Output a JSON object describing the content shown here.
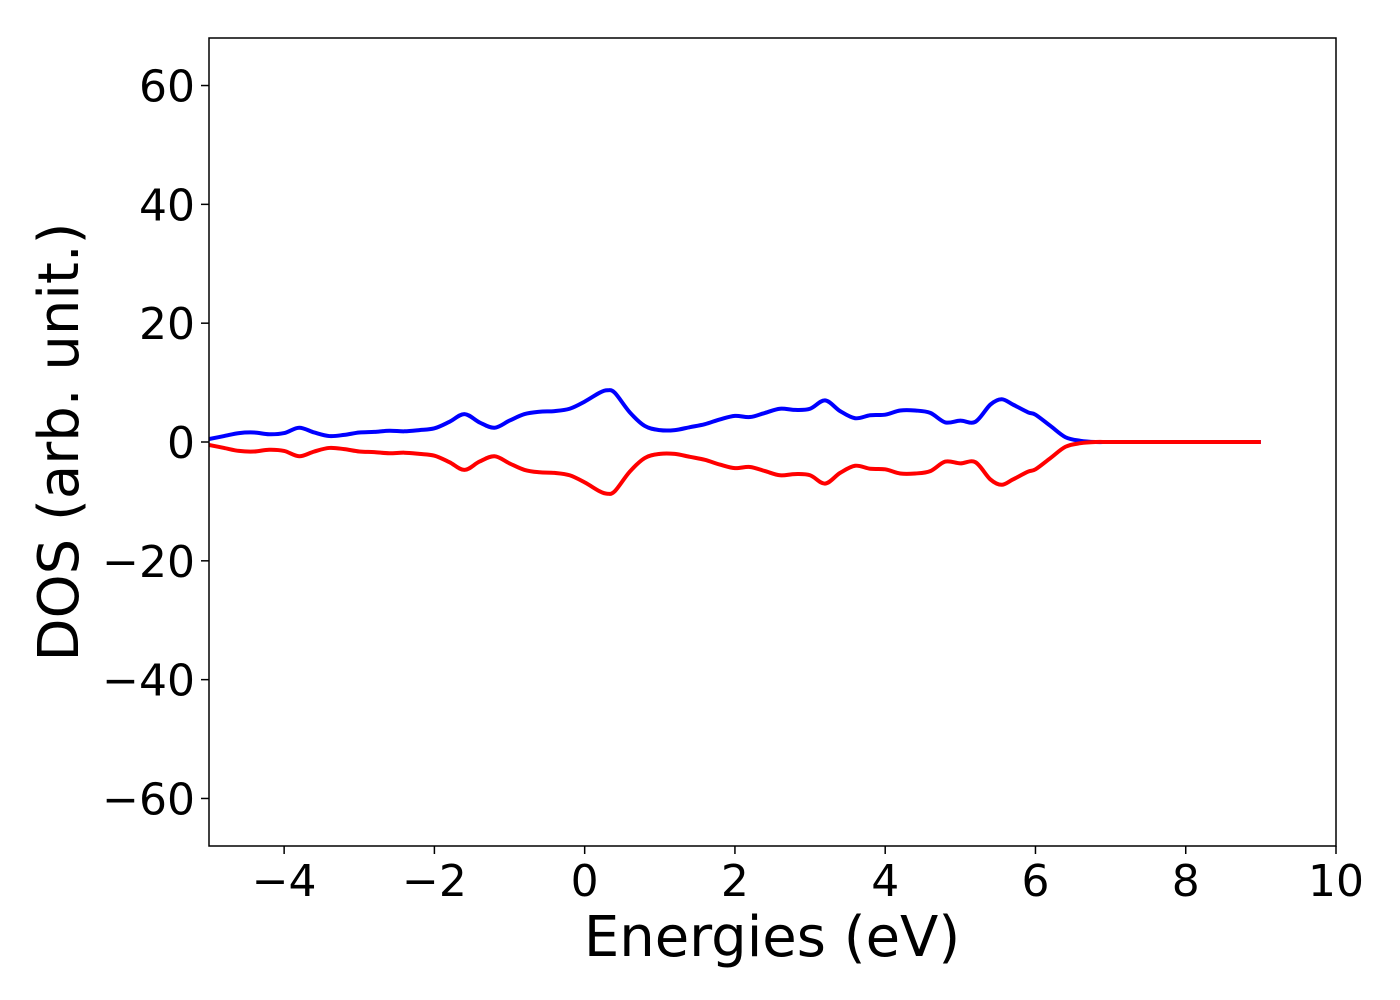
{
  "chart_data": {
    "type": "line",
    "xlabel": "Energies (eV)",
    "ylabel": "DOS (arb. unit.)",
    "xlim": [
      -5,
      10
    ],
    "ylim": [
      -68,
      68
    ],
    "x_ticks": [
      -4,
      -2,
      0,
      2,
      4,
      6,
      8,
      10
    ],
    "y_ticks": [
      60,
      40,
      20,
      0,
      -20,
      -40,
      -60
    ],
    "x_tick_labels": [
      "−4",
      "−2",
      "0",
      "2",
      "4",
      "6",
      "8",
      "10"
    ],
    "y_tick_labels": [
      "60",
      "40",
      "20",
      "0",
      "−20",
      "−40",
      "−60"
    ],
    "grid": false,
    "legend": "none",
    "x": [
      -5.0,
      -4.8,
      -4.6,
      -4.4,
      -4.2,
      -4.0,
      -3.8,
      -3.6,
      -3.4,
      -3.2,
      -3.0,
      -2.8,
      -2.6,
      -2.4,
      -2.2,
      -2.0,
      -1.8,
      -1.6,
      -1.4,
      -1.2,
      -1.0,
      -0.8,
      -0.6,
      -0.4,
      -0.2,
      0.0,
      0.2,
      0.3,
      0.4,
      0.6,
      0.8,
      1.0,
      1.2,
      1.4,
      1.6,
      1.8,
      2.0,
      2.2,
      2.4,
      2.6,
      2.8,
      3.0,
      3.2,
      3.4,
      3.6,
      3.8,
      4.0,
      4.2,
      4.4,
      4.6,
      4.8,
      5.0,
      5.2,
      5.4,
      5.55,
      5.7,
      5.9,
      6.0,
      6.2,
      6.4,
      6.6,
      6.8,
      7.0,
      7.5,
      8.0,
      8.5,
      9.0
    ],
    "series": [
      {
        "color": "#0000ff",
        "values": [
          0.5,
          1.0,
          1.5,
          1.6,
          1.3,
          1.5,
          2.4,
          1.6,
          1.0,
          1.2,
          1.6,
          1.7,
          1.9,
          1.8,
          2.0,
          2.3,
          3.4,
          4.7,
          3.3,
          2.4,
          3.6,
          4.7,
          5.1,
          5.2,
          5.6,
          6.8,
          8.3,
          8.7,
          8.3,
          5.0,
          2.7,
          2.0,
          2.0,
          2.5,
          3.0,
          3.8,
          4.4,
          4.2,
          4.9,
          5.6,
          5.4,
          5.6,
          7.0,
          5.2,
          4.0,
          4.5,
          4.6,
          5.3,
          5.3,
          4.9,
          3.3,
          3.6,
          3.4,
          6.3,
          7.2,
          6.3,
          5.0,
          4.6,
          2.7,
          0.8,
          0.2,
          0.0,
          0.0,
          0.0,
          0.0,
          0.0,
          0.0
        ]
      },
      {
        "color": "#ff0000",
        "values": [
          -0.5,
          -1.0,
          -1.5,
          -1.6,
          -1.3,
          -1.5,
          -2.4,
          -1.6,
          -1.0,
          -1.2,
          -1.6,
          -1.7,
          -1.9,
          -1.8,
          -2.0,
          -2.3,
          -3.4,
          -4.7,
          -3.3,
          -2.4,
          -3.6,
          -4.7,
          -5.1,
          -5.2,
          -5.6,
          -6.8,
          -8.3,
          -8.7,
          -8.3,
          -5.0,
          -2.7,
          -2.0,
          -2.0,
          -2.5,
          -3.0,
          -3.8,
          -4.4,
          -4.2,
          -4.9,
          -5.6,
          -5.4,
          -5.6,
          -7.0,
          -5.2,
          -4.0,
          -4.5,
          -4.6,
          -5.3,
          -5.3,
          -4.9,
          -3.3,
          -3.6,
          -3.4,
          -6.3,
          -7.2,
          -6.3,
          -5.0,
          -4.6,
          -2.7,
          -0.8,
          -0.2,
          0.0,
          0.0,
          0.0,
          0.0,
          0.0,
          0.0
        ]
      }
    ]
  }
}
